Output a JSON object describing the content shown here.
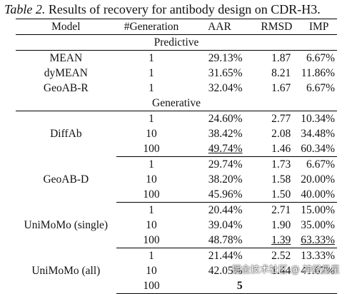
{
  "caption": {
    "lead": "Table 2.",
    "text": "Results of recovery for antibody design on CDR-H3."
  },
  "headers": [
    "Model",
    "#Generation",
    "AAR",
    "RMSD",
    "IMP"
  ],
  "sections": [
    {
      "label": "Predictive",
      "groups": [
        {
          "model": "MEAN",
          "rows": [
            {
              "gen": "1",
              "aar": "29.13%",
              "rmsd": "1.87",
              "imp": "6.67%"
            }
          ]
        },
        {
          "model": "dyMEAN",
          "rows": [
            {
              "gen": "1",
              "aar": "31.65%",
              "rmsd": "8.21",
              "imp": "11.86%"
            }
          ]
        },
        {
          "model": "GeoAB-R",
          "rows": [
            {
              "gen": "1",
              "aar": "32.04%",
              "rmsd": "1.67",
              "imp": "6.67%"
            }
          ]
        }
      ]
    },
    {
      "label": "Generative",
      "groups": [
        {
          "model": "DiffAb",
          "rows": [
            {
              "gen": "1",
              "aar": "24.60%",
              "rmsd": "2.77",
              "imp": "10.34%"
            },
            {
              "gen": "10",
              "aar": "38.42%",
              "rmsd": "2.08",
              "imp": "34.48%"
            },
            {
              "gen": "100",
              "aar": "49.74%",
              "rmsd": "1.46",
              "imp": "60.34%",
              "ul": [
                "aar"
              ]
            }
          ]
        },
        {
          "model": "GeoAB-D",
          "rows": [
            {
              "gen": "1",
              "aar": "29.74%",
              "rmsd": "1.73",
              "imp": "6.67%"
            },
            {
              "gen": "10",
              "aar": "38.20%",
              "rmsd": "1.58",
              "imp": "20.00%"
            },
            {
              "gen": "100",
              "aar": "45.96%",
              "rmsd": "1.50",
              "imp": "40.00%"
            }
          ]
        },
        {
          "model": "UniMoMo (single)",
          "rows": [
            {
              "gen": "1",
              "aar": "20.44%",
              "rmsd": "2.71",
              "imp": "15.00%"
            },
            {
              "gen": "10",
              "aar": "39.04%",
              "rmsd": "1.90",
              "imp": "35.00%"
            },
            {
              "gen": "100",
              "aar": "48.78%",
              "rmsd": "1.39",
              "imp": "63.33%",
              "ul": [
                "rmsd",
                "imp"
              ]
            }
          ]
        },
        {
          "model": "UniMoMo (all)",
          "rows": [
            {
              "gen": "1",
              "aar": "21.44%",
              "rmsd": "2.52",
              "imp": "13.33%"
            },
            {
              "gen": "10",
              "aar": "42.05%",
              "rmsd": "1.44",
              "imp": "41.67%"
            },
            {
              "gen": "100",
              "aar": "5",
              "rmsd": "",
              "imp": "",
              "bold": [
                "aar"
              ]
            }
          ]
        }
      ]
    }
  ],
  "watermark": "掘金技术社区 @ 神经星星"
}
